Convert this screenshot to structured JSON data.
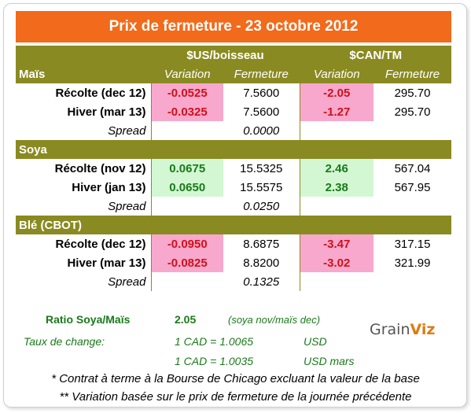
{
  "title": "Prix de fermeture - 23 octobre 2012",
  "headers": {
    "usd": "$US/boisseau",
    "cad": "$CAN/TM",
    "variation": "Variation",
    "fermeture": "Fermeture"
  },
  "sections": [
    {
      "name": "Maïs",
      "rows": [
        {
          "label": "Récolte (dec 12)",
          "us_var": "-0.0525",
          "us_close": "7.5600",
          "cad_var": "-2.05",
          "cad_close": "295.70",
          "dir": "neg"
        },
        {
          "label": "Hiver (mar 13)",
          "us_var": "-0.0325",
          "us_close": "7.5600",
          "cad_var": "-1.27",
          "cad_close": "295.70",
          "dir": "neg"
        }
      ],
      "spread_label": "Spread",
      "spread": "0.0000"
    },
    {
      "name": "Soya",
      "rows": [
        {
          "label": "Récolte (nov 12)",
          "us_var": "0.0675",
          "us_close": "15.5325",
          "cad_var": "2.46",
          "cad_close": "567.04",
          "dir": "pos"
        },
        {
          "label": "Hiver (jan 13)",
          "us_var": "0.0650",
          "us_close": "15.5575",
          "cad_var": "2.38",
          "cad_close": "567.95",
          "dir": "pos"
        }
      ],
      "spread_label": "Spread",
      "spread": "0.0250"
    },
    {
      "name": "Blé (CBOT)",
      "rows": [
        {
          "label": "Récolte (dec 12)",
          "us_var": "-0.0950",
          "us_close": "8.6875",
          "cad_var": "-3.47",
          "cad_close": "317.15",
          "dir": "neg"
        },
        {
          "label": "Hiver (mar 13)",
          "us_var": "-0.0825",
          "us_close": "8.8200",
          "cad_var": "-3.02",
          "cad_close": "321.99",
          "dir": "neg"
        }
      ],
      "spread_label": "Spread",
      "spread": "0.1325"
    }
  ],
  "ratio": {
    "label": "Ratio Soya/Maïs",
    "value": "2.05",
    "note": "(soya nov/maïs dec)"
  },
  "exchange": {
    "label": "Taux de change:",
    "rate1": "1 CAD =  1.0065",
    "unit1": "USD",
    "rate2": "1 CAD =  1.0035",
    "unit2": "USD mars"
  },
  "notes": [
    "* Contrat à terme à la Bourse de Chicago excluant la valeur de la base",
    "** Variation basée sur le prix de fermeture de la journée précédente"
  ],
  "logo": {
    "text_a": "Grain",
    "text_b": "Viz"
  },
  "colors": {
    "title_bg": "#f26a1b",
    "header_bg": "#8a8a22",
    "neg_bg": "#f8a8cc",
    "pos_bg": "#d3f7d3"
  }
}
